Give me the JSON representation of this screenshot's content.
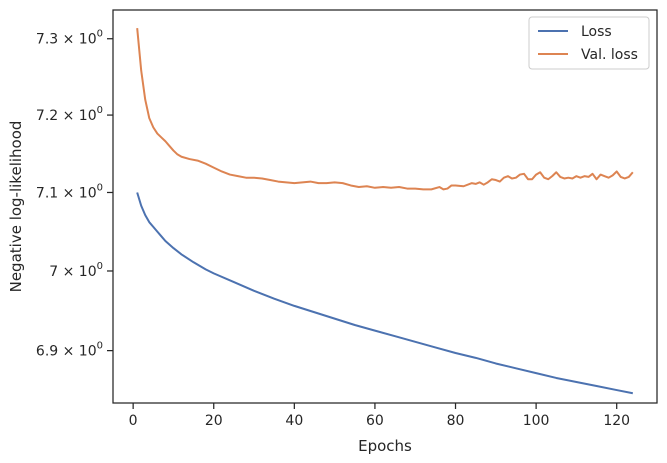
{
  "chart_data": {
    "type": "line",
    "xlabel": "Epochs",
    "ylabel": "Negative log-likelihood",
    "yscale": "log",
    "xlim": [
      -5,
      130
    ],
    "ylim": [
      6.835,
      7.338
    ],
    "grid": false,
    "legend_position": "top-right",
    "x_ticks": [
      0,
      20,
      40,
      60,
      80,
      100,
      120
    ],
    "x_tick_labels": [
      "0",
      "20",
      "40",
      "60",
      "80",
      "100",
      "120"
    ],
    "y_ticks": [
      {
        "value": 6.9,
        "mantissa": "6.9"
      },
      {
        "value": 7.0,
        "mantissa": "7"
      },
      {
        "value": 7.1,
        "mantissa": "7.1"
      },
      {
        "value": 7.2,
        "mantissa": "7.2"
      },
      {
        "value": 7.3,
        "mantissa": "7.3"
      }
    ],
    "y_tick_base": "10",
    "y_tick_exponent": "0",
    "series": [
      {
        "name": "Loss",
        "color": "#4c72b0",
        "points": [
          [
            1,
            7.1
          ],
          [
            2,
            7.083
          ],
          [
            3,
            7.071
          ],
          [
            4,
            7.062
          ],
          [
            5,
            7.056
          ],
          [
            6,
            7.05
          ],
          [
            7,
            7.044
          ],
          [
            8,
            7.038
          ],
          [
            10,
            7.029
          ],
          [
            12,
            7.021
          ],
          [
            15,
            7.011
          ],
          [
            18,
            7.002
          ],
          [
            20,
            6.997
          ],
          [
            25,
            6.986
          ],
          [
            30,
            6.975
          ],
          [
            35,
            6.965
          ],
          [
            40,
            6.956
          ],
          [
            45,
            6.948
          ],
          [
            50,
            6.94
          ],
          [
            55,
            6.932
          ],
          [
            60,
            6.925
          ],
          [
            65,
            6.918
          ],
          [
            70,
            6.911
          ],
          [
            75,
            6.904
          ],
          [
            80,
            6.897
          ],
          [
            85,
            6.891
          ],
          [
            90,
            6.884
          ],
          [
            95,
            6.878
          ],
          [
            100,
            6.872
          ],
          [
            105,
            6.866
          ],
          [
            110,
            6.861
          ],
          [
            115,
            6.856
          ],
          [
            120,
            6.851
          ],
          [
            124,
            6.847
          ]
        ]
      },
      {
        "name": "Val. loss",
        "color": "#dd8452",
        "points": [
          [
            1,
            7.314
          ],
          [
            2,
            7.258
          ],
          [
            3,
            7.22
          ],
          [
            4,
            7.196
          ],
          [
            5,
            7.184
          ],
          [
            6,
            7.176
          ],
          [
            7,
            7.171
          ],
          [
            8,
            7.166
          ],
          [
            9,
            7.16
          ],
          [
            10,
            7.154
          ],
          [
            11,
            7.149
          ],
          [
            12,
            7.146
          ],
          [
            14,
            7.143
          ],
          [
            16,
            7.141
          ],
          [
            18,
            7.137
          ],
          [
            20,
            7.132
          ],
          [
            22,
            7.127
          ],
          [
            24,
            7.123
          ],
          [
            26,
            7.121
          ],
          [
            28,
            7.119
          ],
          [
            30,
            7.119
          ],
          [
            32,
            7.118
          ],
          [
            34,
            7.116
          ],
          [
            36,
            7.114
          ],
          [
            38,
            7.113
          ],
          [
            40,
            7.112
          ],
          [
            42,
            7.113
          ],
          [
            44,
            7.114
          ],
          [
            46,
            7.112
          ],
          [
            48,
            7.112
          ],
          [
            50,
            7.113
          ],
          [
            52,
            7.112
          ],
          [
            54,
            7.109
          ],
          [
            56,
            7.107
          ],
          [
            58,
            7.108
          ],
          [
            60,
            7.106
          ],
          [
            62,
            7.107
          ],
          [
            64,
            7.106
          ],
          [
            66,
            7.107
          ],
          [
            68,
            7.105
          ],
          [
            70,
            7.105
          ],
          [
            72,
            7.104
          ],
          [
            74,
            7.104
          ],
          [
            76,
            7.107
          ],
          [
            77,
            7.104
          ],
          [
            78,
            7.105
          ],
          [
            79,
            7.109
          ],
          [
            80,
            7.109
          ],
          [
            82,
            7.108
          ],
          [
            84,
            7.112
          ],
          [
            85,
            7.111
          ],
          [
            86,
            7.113
          ],
          [
            87,
            7.11
          ],
          [
            88,
            7.113
          ],
          [
            89,
            7.117
          ],
          [
            90,
            7.116
          ],
          [
            91,
            7.114
          ],
          [
            92,
            7.119
          ],
          [
            93,
            7.121
          ],
          [
            94,
            7.118
          ],
          [
            95,
            7.119
          ],
          [
            96,
            7.123
          ],
          [
            97,
            7.124
          ],
          [
            98,
            7.117
          ],
          [
            99,
            7.117
          ],
          [
            100,
            7.123
          ],
          [
            101,
            7.126
          ],
          [
            102,
            7.119
          ],
          [
            103,
            7.117
          ],
          [
            104,
            7.121
          ],
          [
            105,
            7.126
          ],
          [
            106,
            7.12
          ],
          [
            107,
            7.118
          ],
          [
            108,
            7.119
          ],
          [
            109,
            7.118
          ],
          [
            110,
            7.121
          ],
          [
            111,
            7.119
          ],
          [
            112,
            7.121
          ],
          [
            113,
            7.12
          ],
          [
            114,
            7.124
          ],
          [
            115,
            7.117
          ],
          [
            116,
            7.123
          ],
          [
            117,
            7.121
          ],
          [
            118,
            7.119
          ],
          [
            119,
            7.122
          ],
          [
            120,
            7.127
          ],
          [
            121,
            7.12
          ],
          [
            122,
            7.118
          ],
          [
            123,
            7.12
          ],
          [
            124,
            7.126
          ]
        ]
      }
    ]
  }
}
